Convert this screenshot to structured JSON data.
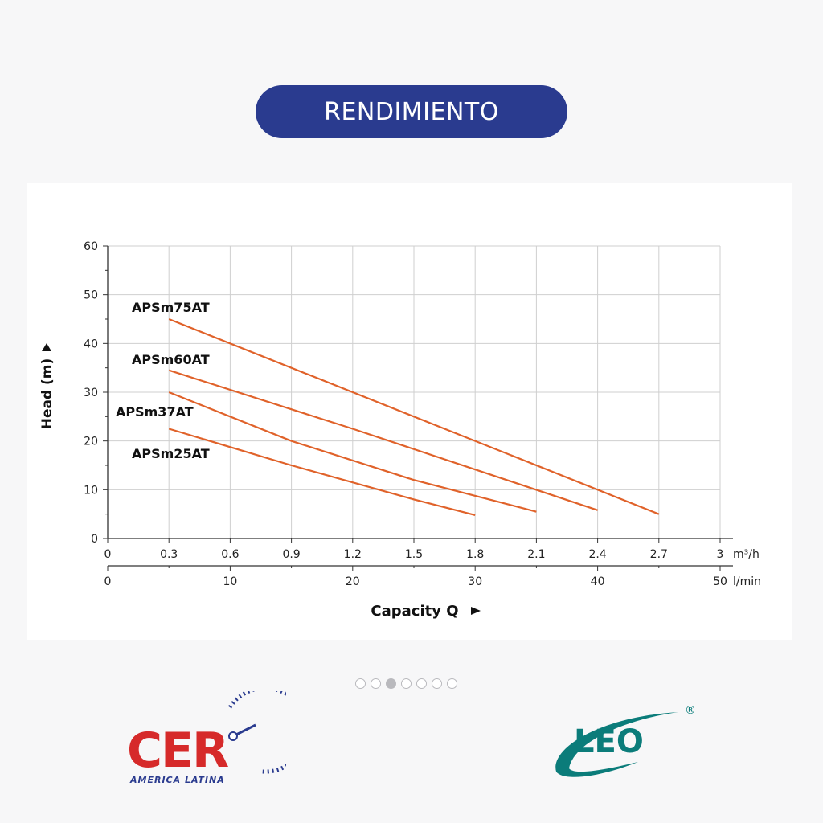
{
  "page": {
    "title": "RENDIMIENTO"
  },
  "carousel": {
    "count": 7,
    "active_index": 2
  },
  "logos": {
    "left": {
      "text": "CER",
      "subtitle": "AMERICA LATINA",
      "icon": "gauge-icon",
      "colors": {
        "red": "#d62a2a",
        "blue": "#2a3b8f"
      }
    },
    "right": {
      "text": "LEO",
      "registered": "®",
      "icon": "swoosh-icon",
      "colors": {
        "teal": "#0b7c7a"
      }
    }
  },
  "chart_data": {
    "type": "line",
    "ylabel": "Head (m)",
    "xlabel": "Capacity Q",
    "ylim": [
      0,
      60
    ],
    "y_ticks": [
      0,
      10,
      20,
      30,
      40,
      50,
      60
    ],
    "xlim": [
      0,
      3.0
    ],
    "x_ticks": [
      0,
      0.3,
      0.6,
      0.9,
      1.2,
      1.5,
      1.8,
      2.1,
      2.4,
      2.7,
      3.0
    ],
    "x_unit": "m³/h",
    "x2_ticks": [
      0,
      10,
      20,
      30,
      40,
      50
    ],
    "x2_unit": "l/min",
    "grid": true,
    "line_color": "#e0622a",
    "series": [
      {
        "name": "APSm75AT",
        "x": [
          0.3,
          2.7
        ],
        "y": [
          45,
          5
        ]
      },
      {
        "name": "APSm60AT",
        "x": [
          0.3,
          1.2,
          2.4
        ],
        "y": [
          34.5,
          22.5,
          5.8
        ]
      },
      {
        "name": "APSm37AT",
        "x": [
          0.3,
          0.9,
          1.5,
          2.1
        ],
        "y": [
          30,
          20,
          12,
          5.5
        ]
      },
      {
        "name": "APSm25AT",
        "x": [
          0.3,
          0.9,
          1.5,
          1.8
        ],
        "y": [
          22.5,
          15,
          8,
          4.8
        ]
      }
    ]
  }
}
